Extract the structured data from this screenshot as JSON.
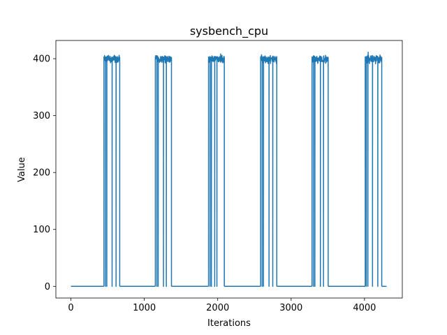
{
  "chart_data": {
    "type": "line",
    "title": "sysbench_cpu",
    "xlabel": "Iterations",
    "ylabel": "Value",
    "xlim": [
      -205,
      4515
    ],
    "ylim": [
      -20.5,
      432
    ],
    "xticks": [
      0,
      1000,
      2000,
      3000,
      4000
    ],
    "xtick_labels": [
      "0",
      "1000",
      "2000",
      "3000",
      "4000"
    ],
    "yticks": [
      0,
      100,
      200,
      300,
      400
    ],
    "ytick_labels": [
      "0",
      "100",
      "200",
      "300",
      "400"
    ],
    "grid": false,
    "series": [
      {
        "color": "#1f77b4",
        "segments": [
          {
            "start": 0,
            "end": 450,
            "level": 0
          },
          {
            "start": 450,
            "end": 665,
            "level": 403,
            "dips": [
              470,
              490,
              560,
              615
            ]
          },
          {
            "start": 665,
            "end": 1150,
            "level": 0
          },
          {
            "start": 1150,
            "end": 1370,
            "level": 403,
            "dips": [
              1170,
              1190,
              1260,
              1300
            ]
          },
          {
            "start": 1370,
            "end": 1875,
            "level": 0
          },
          {
            "start": 1875,
            "end": 2090,
            "level": 403,
            "dips": [
              1895,
              1915,
              1960,
              1990
            ],
            "spikes": [
              {
                "x": 2040,
                "y": 409
              }
            ]
          },
          {
            "start": 2090,
            "end": 2585,
            "level": 0
          },
          {
            "start": 2585,
            "end": 2805,
            "level": 403,
            "dips": [
              2605,
              2625,
              2700,
              2750
            ]
          },
          {
            "start": 2805,
            "end": 3285,
            "level": 0
          },
          {
            "start": 3285,
            "end": 3505,
            "level": 403,
            "dips": [
              3305,
              3325,
              3400,
              3440
            ],
            "tail": {
              "x": 3505,
              "y": 330
            }
          },
          {
            "start": 3505,
            "end": 4010,
            "level": 0
          },
          {
            "start": 4010,
            "end": 4235,
            "level": 403,
            "dips": [
              4025,
              4045,
              4110,
              4180
            ],
            "spikes": [
              {
                "x": 4050,
                "y": 412
              }
            ]
          },
          {
            "start": 4235,
            "end": 4300,
            "level": 0
          }
        ]
      }
    ]
  }
}
